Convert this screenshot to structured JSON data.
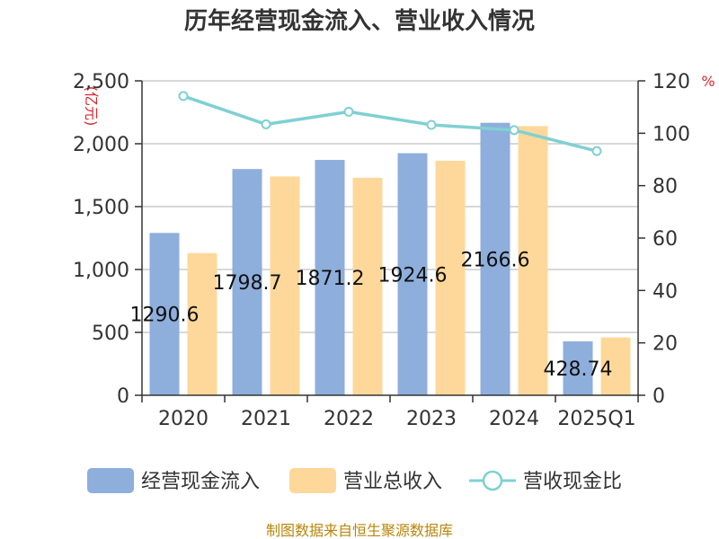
{
  "chart_data": {
    "type": "bar",
    "title": "历年经营现金流入、营业收入情况",
    "categories": [
      "2020",
      "2021",
      "2022",
      "2023",
      "2024",
      "2025Q1"
    ],
    "series": [
      {
        "name": "经营现金流入",
        "type": "bar",
        "axis": "left",
        "color": "#8eaedc",
        "values": [
          1290.6,
          1798.7,
          1871.2,
          1924.6,
          2166.6,
          428.74
        ],
        "labels": [
          "1290.6",
          "1798.7",
          "1871.2",
          "1924.6",
          "2166.6",
          "428.74"
        ]
      },
      {
        "name": "营业总收入",
        "type": "bar",
        "axis": "left",
        "color": "#fed89a",
        "values": [
          1130,
          1740,
          1730,
          1865,
          2140,
          460
        ]
      },
      {
        "name": "营收现金比",
        "type": "line",
        "axis": "right",
        "color": "#7fd0d3",
        "values": [
          114.2,
          103.4,
          108.2,
          103.2,
          101.2,
          93.2
        ]
      }
    ],
    "y_left": {
      "unit": "(亿元)",
      "min": 0,
      "max": 2500,
      "ticks": [
        "0",
        "500",
        "1,000",
        "1,500",
        "2,000",
        "2,500"
      ],
      "tick_values": [
        0,
        500,
        1000,
        1500,
        2000,
        2500
      ]
    },
    "y_right": {
      "unit": "%",
      "min": 0,
      "max": 120,
      "ticks": [
        "0",
        "20",
        "40",
        "60",
        "80",
        "100",
        "120"
      ],
      "tick_values": [
        0,
        20,
        40,
        60,
        80,
        100,
        120
      ]
    },
    "grid": true,
    "legend_position": "bottom"
  },
  "source_text": "制图数据来自恒生聚源数据库"
}
